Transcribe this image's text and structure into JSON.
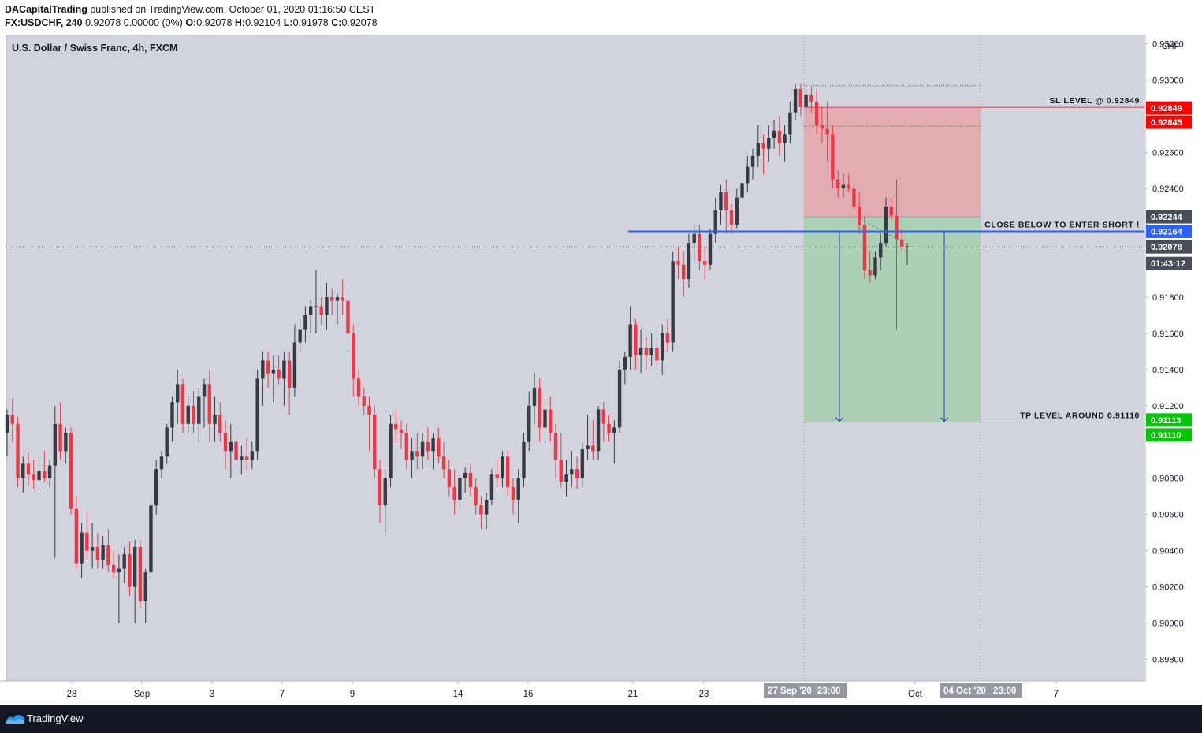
{
  "header": {
    "author": "DACapitalTrading",
    "published_text": "published on TradingView.com, October 01, 2020 01:16:50 CEST",
    "symbol": "FX:USDCHF, 240",
    "change": "0.92078 0.00000 (0%)",
    "o_label": "O:",
    "o_value": "0.92078",
    "h_label": "H:",
    "h_value": "0.92104",
    "l_label": "L:",
    "l_value": "0.91978",
    "c_label": "C:",
    "c_value": "0.92078"
  },
  "footer": {
    "brand": "TradingView"
  },
  "colors": {
    "background": "#d1d4dc",
    "bull": "#363a45",
    "bear": "#f23645",
    "stop_zone": "#e5a4ab",
    "target_zone": "#a5cfae",
    "entry_line": "#2962ff",
    "sl_badge": "#ff0000",
    "tp_badge": "#00c800",
    "price_badge": "#4a4e59"
  },
  "chart_data": {
    "type": "candlestick",
    "title": "U.S. Dollar / Swiss Franc, 4h, FXCM",
    "y_axis_unit": "CHF",
    "ylim": [
      0.8968,
      0.9325
    ],
    "y_ticks": [
      "0.93200",
      "0.93000",
      "0.92600",
      "0.92400",
      "0.91800",
      "0.91600",
      "0.91400",
      "0.91200",
      "0.90800",
      "0.90600",
      "0.90400",
      "0.90200",
      "0.90000",
      "0.89800"
    ],
    "x_tick_labels": [
      {
        "label": "28",
        "date": "2020-08-28"
      },
      {
        "label": "Sep",
        "date": "2020-09-01"
      },
      {
        "label": "3",
        "date": "2020-09-03"
      },
      {
        "label": "7",
        "date": "2020-09-07"
      },
      {
        "label": "9",
        "date": "2020-09-09"
      },
      {
        "label": "14",
        "date": "2020-09-14"
      },
      {
        "label": "16",
        "date": "2020-09-16"
      },
      {
        "label": "21",
        "date": "2020-09-21"
      },
      {
        "label": "23",
        "date": "2020-09-23"
      },
      {
        "label": "Oct",
        "date": "2020-10-01"
      },
      {
        "label": "7",
        "date": "2020-10-07"
      }
    ],
    "x_range_badges": [
      "27 Sep '20",
      "23:00",
      "04 Oct '20",
      "23:00"
    ],
    "price_levels": [
      {
        "label": "0.92849",
        "kind": "sl"
      },
      {
        "label": "0.92845",
        "kind": "sl"
      },
      {
        "label": "0.92244",
        "kind": "price"
      },
      {
        "label": "0.92164",
        "kind": "entry"
      },
      {
        "label": "0.92078",
        "kind": "price"
      },
      {
        "label": "01:43:12",
        "kind": "countdown"
      },
      {
        "label": "0.91113",
        "kind": "tp"
      },
      {
        "label": "0.91110",
        "kind": "tp"
      }
    ],
    "annotations": [
      {
        "text": "SL LEVEL @ 0.92849",
        "price": 0.92849
      },
      {
        "text": "CLOSE BELOW TO ENTER SHORT !",
        "price": 0.92164
      },
      {
        "text": "TP LEVEL AROUND 0.91110",
        "price": 0.9111
      }
    ],
    "position": {
      "side": "short",
      "entry": 0.92244,
      "stop": 0.92849,
      "target": 0.9111,
      "start": "2020-09-27 23:00",
      "end": "2020-10-04 23:00"
    },
    "entry_line": 0.92164,
    "last_price": 0.92078,
    "candles": [
      {
        "o": 0.9105,
        "h": 0.9118,
        "l": 0.9092,
        "c": 0.9115
      },
      {
        "o": 0.9115,
        "h": 0.9124,
        "l": 0.91,
        "c": 0.911
      },
      {
        "o": 0.911,
        "h": 0.9114,
        "l": 0.9075,
        "c": 0.908
      },
      {
        "o": 0.908,
        "h": 0.9092,
        "l": 0.9072,
        "c": 0.9088
      },
      {
        "o": 0.9088,
        "h": 0.9094,
        "l": 0.9076,
        "c": 0.9082
      },
      {
        "o": 0.9082,
        "h": 0.909,
        "l": 0.9074,
        "c": 0.9079
      },
      {
        "o": 0.9079,
        "h": 0.9088,
        "l": 0.9073,
        "c": 0.9084
      },
      {
        "o": 0.9084,
        "h": 0.9095,
        "l": 0.9078,
        "c": 0.908
      },
      {
        "o": 0.908,
        "h": 0.909,
        "l": 0.9075,
        "c": 0.9087
      },
      {
        "o": 0.9087,
        "h": 0.912,
        "l": 0.9036,
        "c": 0.911
      },
      {
        "o": 0.911,
        "h": 0.9122,
        "l": 0.909,
        "c": 0.9095
      },
      {
        "o": 0.9095,
        "h": 0.9108,
        "l": 0.9088,
        "c": 0.9105
      },
      {
        "o": 0.9105,
        "h": 0.9108,
        "l": 0.906,
        "c": 0.9063
      },
      {
        "o": 0.9063,
        "h": 0.907,
        "l": 0.903,
        "c": 0.9033
      },
      {
        "o": 0.9033,
        "h": 0.9055,
        "l": 0.9025,
        "c": 0.905
      },
      {
        "o": 0.905,
        "h": 0.9062,
        "l": 0.9035,
        "c": 0.904
      },
      {
        "o": 0.904,
        "h": 0.9055,
        "l": 0.903,
        "c": 0.9042
      },
      {
        "o": 0.9042,
        "h": 0.905,
        "l": 0.903,
        "c": 0.9035
      },
      {
        "o": 0.9035,
        "h": 0.9048,
        "l": 0.903,
        "c": 0.9043
      },
      {
        "o": 0.9043,
        "h": 0.9052,
        "l": 0.9028,
        "c": 0.9032
      },
      {
        "o": 0.9032,
        "h": 0.904,
        "l": 0.9025,
        "c": 0.9028
      },
      {
        "o": 0.9028,
        "h": 0.9038,
        "l": 0.9,
        "c": 0.903
      },
      {
        "o": 0.903,
        "h": 0.9042,
        "l": 0.9022,
        "c": 0.9038
      },
      {
        "o": 0.9038,
        "h": 0.9045,
        "l": 0.9015,
        "c": 0.902
      },
      {
        "o": 0.902,
        "h": 0.9046,
        "l": 0.9,
        "c": 0.9042
      },
      {
        "o": 0.9042,
        "h": 0.9046,
        "l": 0.9008,
        "c": 0.9012
      },
      {
        "o": 0.9012,
        "h": 0.903,
        "l": 0.9,
        "c": 0.9028
      },
      {
        "o": 0.9028,
        "h": 0.9068,
        "l": 0.9025,
        "c": 0.9065
      },
      {
        "o": 0.9065,
        "h": 0.909,
        "l": 0.906,
        "c": 0.9085
      },
      {
        "o": 0.9085,
        "h": 0.9095,
        "l": 0.908,
        "c": 0.9092
      },
      {
        "o": 0.9092,
        "h": 0.911,
        "l": 0.9088,
        "c": 0.9108
      },
      {
        "o": 0.9108,
        "h": 0.9125,
        "l": 0.91,
        "c": 0.9122
      },
      {
        "o": 0.9122,
        "h": 0.914,
        "l": 0.911,
        "c": 0.9132
      },
      {
        "o": 0.9132,
        "h": 0.9135,
        "l": 0.9105,
        "c": 0.911
      },
      {
        "o": 0.911,
        "h": 0.9125,
        "l": 0.9105,
        "c": 0.912
      },
      {
        "o": 0.912,
        "h": 0.9128,
        "l": 0.9105,
        "c": 0.911
      },
      {
        "o": 0.911,
        "h": 0.913,
        "l": 0.91,
        "c": 0.9125
      },
      {
        "o": 0.9125,
        "h": 0.9135,
        "l": 0.9108,
        "c": 0.9132
      },
      {
        "o": 0.9132,
        "h": 0.914,
        "l": 0.91,
        "c": 0.911
      },
      {
        "o": 0.911,
        "h": 0.9125,
        "l": 0.91,
        "c": 0.9115
      },
      {
        "o": 0.9115,
        "h": 0.9122,
        "l": 0.91,
        "c": 0.9105
      },
      {
        "o": 0.9105,
        "h": 0.9112,
        "l": 0.9085,
        "c": 0.9095
      },
      {
        "o": 0.9095,
        "h": 0.911,
        "l": 0.908,
        "c": 0.91
      },
      {
        "o": 0.91,
        "h": 0.9105,
        "l": 0.9085,
        "c": 0.909
      },
      {
        "o": 0.909,
        "h": 0.9098,
        "l": 0.9082,
        "c": 0.9092
      },
      {
        "o": 0.9092,
        "h": 0.9102,
        "l": 0.9085,
        "c": 0.909
      },
      {
        "o": 0.909,
        "h": 0.91,
        "l": 0.9085,
        "c": 0.9095
      },
      {
        "o": 0.9095,
        "h": 0.914,
        "l": 0.909,
        "c": 0.9135
      },
      {
        "o": 0.9135,
        "h": 0.915,
        "l": 0.912,
        "c": 0.9145
      },
      {
        "o": 0.9145,
        "h": 0.915,
        "l": 0.913,
        "c": 0.9138
      },
      {
        "o": 0.9138,
        "h": 0.9148,
        "l": 0.9122,
        "c": 0.914
      },
      {
        "o": 0.914,
        "h": 0.9148,
        "l": 0.9132,
        "c": 0.9135
      },
      {
        "o": 0.9135,
        "h": 0.915,
        "l": 0.912,
        "c": 0.9145
      },
      {
        "o": 0.9145,
        "h": 0.915,
        "l": 0.9115,
        "c": 0.913
      },
      {
        "o": 0.913,
        "h": 0.9165,
        "l": 0.9125,
        "c": 0.9155
      },
      {
        "o": 0.9155,
        "h": 0.9168,
        "l": 0.915,
        "c": 0.9162
      },
      {
        "o": 0.9162,
        "h": 0.9175,
        "l": 0.9155,
        "c": 0.917
      },
      {
        "o": 0.917,
        "h": 0.9178,
        "l": 0.916,
        "c": 0.9175
      },
      {
        "o": 0.9175,
        "h": 0.9195,
        "l": 0.916,
        "c": 0.9175
      },
      {
        "o": 0.9175,
        "h": 0.918,
        "l": 0.9165,
        "c": 0.917
      },
      {
        "o": 0.917,
        "h": 0.9188,
        "l": 0.9162,
        "c": 0.918
      },
      {
        "o": 0.918,
        "h": 0.9185,
        "l": 0.917,
        "c": 0.9178
      },
      {
        "o": 0.9178,
        "h": 0.9182,
        "l": 0.9165,
        "c": 0.918
      },
      {
        "o": 0.918,
        "h": 0.919,
        "l": 0.917,
        "c": 0.9178
      },
      {
        "o": 0.9178,
        "h": 0.9185,
        "l": 0.915,
        "c": 0.916
      },
      {
        "o": 0.916,
        "h": 0.9165,
        "l": 0.9125,
        "c": 0.9135
      },
      {
        "o": 0.9135,
        "h": 0.914,
        "l": 0.912,
        "c": 0.9125
      },
      {
        "o": 0.9125,
        "h": 0.913,
        "l": 0.9115,
        "c": 0.912
      },
      {
        "o": 0.912,
        "h": 0.9125,
        "l": 0.9095,
        "c": 0.9115
      },
      {
        "o": 0.9115,
        "h": 0.912,
        "l": 0.908,
        "c": 0.9085
      },
      {
        "o": 0.9085,
        "h": 0.909,
        "l": 0.9055,
        "c": 0.9065
      },
      {
        "o": 0.9065,
        "h": 0.9085,
        "l": 0.905,
        "c": 0.908
      },
      {
        "o": 0.908,
        "h": 0.9115,
        "l": 0.9075,
        "c": 0.911
      },
      {
        "o": 0.911,
        "h": 0.9118,
        "l": 0.91,
        "c": 0.9107
      },
      {
        "o": 0.9107,
        "h": 0.9112,
        "l": 0.9096,
        "c": 0.9105
      },
      {
        "o": 0.9105,
        "h": 0.911,
        "l": 0.9085,
        "c": 0.909
      },
      {
        "o": 0.909,
        "h": 0.9102,
        "l": 0.908,
        "c": 0.9095
      },
      {
        "o": 0.9095,
        "h": 0.9105,
        "l": 0.9085,
        "c": 0.9092
      },
      {
        "o": 0.9092,
        "h": 0.9105,
        "l": 0.9085,
        "c": 0.91
      },
      {
        "o": 0.91,
        "h": 0.9108,
        "l": 0.909,
        "c": 0.9095
      },
      {
        "o": 0.9095,
        "h": 0.9105,
        "l": 0.9085,
        "c": 0.9102
      },
      {
        "o": 0.9102,
        "h": 0.9108,
        "l": 0.9088,
        "c": 0.9092
      },
      {
        "o": 0.9092,
        "h": 0.91,
        "l": 0.908,
        "c": 0.9085
      },
      {
        "o": 0.9085,
        "h": 0.909,
        "l": 0.907,
        "c": 0.9075
      },
      {
        "o": 0.9075,
        "h": 0.9085,
        "l": 0.906,
        "c": 0.9068
      },
      {
        "o": 0.9068,
        "h": 0.9082,
        "l": 0.9063,
        "c": 0.908
      },
      {
        "o": 0.908,
        "h": 0.9086,
        "l": 0.9072,
        "c": 0.9083
      },
      {
        "o": 0.9083,
        "h": 0.9088,
        "l": 0.907,
        "c": 0.9075
      },
      {
        "o": 0.9075,
        "h": 0.908,
        "l": 0.906,
        "c": 0.9065
      },
      {
        "o": 0.9065,
        "h": 0.907,
        "l": 0.9052,
        "c": 0.906
      },
      {
        "o": 0.906,
        "h": 0.9072,
        "l": 0.9052,
        "c": 0.9068
      },
      {
        "o": 0.9068,
        "h": 0.9085,
        "l": 0.9065,
        "c": 0.9082
      },
      {
        "o": 0.9082,
        "h": 0.909,
        "l": 0.9075,
        "c": 0.908
      },
      {
        "o": 0.908,
        "h": 0.9095,
        "l": 0.9075,
        "c": 0.9092
      },
      {
        "o": 0.9092,
        "h": 0.9095,
        "l": 0.907,
        "c": 0.9075
      },
      {
        "o": 0.9075,
        "h": 0.908,
        "l": 0.906,
        "c": 0.9068
      },
      {
        "o": 0.9068,
        "h": 0.9085,
        "l": 0.9055,
        "c": 0.908
      },
      {
        "o": 0.908,
        "h": 0.9105,
        "l": 0.9075,
        "c": 0.91
      },
      {
        "o": 0.91,
        "h": 0.9128,
        "l": 0.9095,
        "c": 0.912
      },
      {
        "o": 0.912,
        "h": 0.9138,
        "l": 0.911,
        "c": 0.913
      },
      {
        "o": 0.913,
        "h": 0.9135,
        "l": 0.91,
        "c": 0.9108
      },
      {
        "o": 0.9108,
        "h": 0.9122,
        "l": 0.91,
        "c": 0.9118
      },
      {
        "o": 0.9118,
        "h": 0.9125,
        "l": 0.91,
        "c": 0.9105
      },
      {
        "o": 0.9105,
        "h": 0.911,
        "l": 0.908,
        "c": 0.909
      },
      {
        "o": 0.909,
        "h": 0.9105,
        "l": 0.9075,
        "c": 0.9078
      },
      {
        "o": 0.9078,
        "h": 0.909,
        "l": 0.907,
        "c": 0.9082
      },
      {
        "o": 0.9082,
        "h": 0.9095,
        "l": 0.9075,
        "c": 0.9085
      },
      {
        "o": 0.9085,
        "h": 0.9092,
        "l": 0.9074,
        "c": 0.908
      },
      {
        "o": 0.908,
        "h": 0.91,
        "l": 0.9075,
        "c": 0.9096
      },
      {
        "o": 0.9096,
        "h": 0.9115,
        "l": 0.909,
        "c": 0.9098
      },
      {
        "o": 0.9098,
        "h": 0.9112,
        "l": 0.909,
        "c": 0.9095
      },
      {
        "o": 0.9095,
        "h": 0.912,
        "l": 0.909,
        "c": 0.9118
      },
      {
        "o": 0.9118,
        "h": 0.9122,
        "l": 0.91,
        "c": 0.911
      },
      {
        "o": 0.911,
        "h": 0.9115,
        "l": 0.91,
        "c": 0.9105
      },
      {
        "o": 0.9105,
        "h": 0.9112,
        "l": 0.9088,
        "c": 0.9108
      },
      {
        "o": 0.9108,
        "h": 0.9145,
        "l": 0.9105,
        "c": 0.914
      },
      {
        "o": 0.914,
        "h": 0.915,
        "l": 0.9132,
        "c": 0.9147
      },
      {
        "o": 0.9147,
        "h": 0.9175,
        "l": 0.914,
        "c": 0.9165
      },
      {
        "o": 0.9165,
        "h": 0.9168,
        "l": 0.914,
        "c": 0.9148
      },
      {
        "o": 0.9148,
        "h": 0.9162,
        "l": 0.9138,
        "c": 0.9152
      },
      {
        "o": 0.9152,
        "h": 0.9158,
        "l": 0.914,
        "c": 0.9148
      },
      {
        "o": 0.9148,
        "h": 0.916,
        "l": 0.9142,
        "c": 0.9152
      },
      {
        "o": 0.9152,
        "h": 0.9158,
        "l": 0.914,
        "c": 0.9145
      },
      {
        "o": 0.9145,
        "h": 0.9165,
        "l": 0.9137,
        "c": 0.916
      },
      {
        "o": 0.916,
        "h": 0.9168,
        "l": 0.915,
        "c": 0.9155
      },
      {
        "o": 0.9155,
        "h": 0.9205,
        "l": 0.915,
        "c": 0.92
      },
      {
        "o": 0.92,
        "h": 0.9208,
        "l": 0.919,
        "c": 0.9198
      },
      {
        "o": 0.9198,
        "h": 0.9205,
        "l": 0.918,
        "c": 0.919
      },
      {
        "o": 0.919,
        "h": 0.9215,
        "l": 0.9185,
        "c": 0.921
      },
      {
        "o": 0.921,
        "h": 0.922,
        "l": 0.92,
        "c": 0.9215
      },
      {
        "o": 0.9215,
        "h": 0.922,
        "l": 0.9195,
        "c": 0.92
      },
      {
        "o": 0.92,
        "h": 0.9208,
        "l": 0.919,
        "c": 0.9198
      },
      {
        "o": 0.9198,
        "h": 0.9218,
        "l": 0.9195,
        "c": 0.9215
      },
      {
        "o": 0.9215,
        "h": 0.9235,
        "l": 0.921,
        "c": 0.9228
      },
      {
        "o": 0.9228,
        "h": 0.9242,
        "l": 0.922,
        "c": 0.9238
      },
      {
        "o": 0.9238,
        "h": 0.9245,
        "l": 0.9215,
        "c": 0.9228
      },
      {
        "o": 0.9228,
        "h": 0.9232,
        "l": 0.9215,
        "c": 0.922
      },
      {
        "o": 0.922,
        "h": 0.924,
        "l": 0.9218,
        "c": 0.9235
      },
      {
        "o": 0.9235,
        "h": 0.925,
        "l": 0.923,
        "c": 0.9243
      },
      {
        "o": 0.9243,
        "h": 0.9258,
        "l": 0.9238,
        "c": 0.9252
      },
      {
        "o": 0.9252,
        "h": 0.9262,
        "l": 0.9245,
        "c": 0.9258
      },
      {
        "o": 0.9258,
        "h": 0.9275,
        "l": 0.9252,
        "c": 0.9265
      },
      {
        "o": 0.9265,
        "h": 0.927,
        "l": 0.9248,
        "c": 0.9262
      },
      {
        "o": 0.9262,
        "h": 0.9275,
        "l": 0.9255,
        "c": 0.9268
      },
      {
        "o": 0.9268,
        "h": 0.9278,
        "l": 0.9262,
        "c": 0.9272
      },
      {
        "o": 0.9272,
        "h": 0.928,
        "l": 0.9258,
        "c": 0.9265
      },
      {
        "o": 0.9265,
        "h": 0.9275,
        "l": 0.9255,
        "c": 0.927
      },
      {
        "o": 0.927,
        "h": 0.9288,
        "l": 0.9265,
        "c": 0.9282
      },
      {
        "o": 0.9282,
        "h": 0.9298,
        "l": 0.9278,
        "c": 0.9295
      },
      {
        "o": 0.9295,
        "h": 0.9298,
        "l": 0.928,
        "c": 0.9285
      },
      {
        "o": 0.9285,
        "h": 0.9295,
        "l": 0.9278,
        "c": 0.9292
      },
      {
        "o": 0.9292,
        "h": 0.9296,
        "l": 0.9282,
        "c": 0.9288
      },
      {
        "o": 0.9288,
        "h": 0.9295,
        "l": 0.927,
        "c": 0.9275
      },
      {
        "o": 0.9275,
        "h": 0.9285,
        "l": 0.9265,
        "c": 0.9273
      },
      {
        "o": 0.9273,
        "h": 0.9288,
        "l": 0.9255,
        "c": 0.927
      },
      {
        "o": 0.927,
        "h": 0.9275,
        "l": 0.924,
        "c": 0.9245
      },
      {
        "o": 0.9245,
        "h": 0.925,
        "l": 0.9235,
        "c": 0.924
      },
      {
        "o": 0.924,
        "h": 0.9248,
        "l": 0.9235,
        "c": 0.9242
      },
      {
        "o": 0.9242,
        "h": 0.9248,
        "l": 0.9238,
        "c": 0.924
      },
      {
        "o": 0.924,
        "h": 0.9245,
        "l": 0.9228,
        "c": 0.923
      },
      {
        "o": 0.923,
        "h": 0.9238,
        "l": 0.9215,
        "c": 0.922
      },
      {
        "o": 0.922,
        "h": 0.9225,
        "l": 0.919,
        "c": 0.9195
      },
      {
        "o": 0.9195,
        "h": 0.9205,
        "l": 0.9188,
        "c": 0.9192
      },
      {
        "o": 0.9192,
        "h": 0.9205,
        "l": 0.919,
        "c": 0.9202
      },
      {
        "o": 0.9202,
        "h": 0.9215,
        "l": 0.9195,
        "c": 0.921
      },
      {
        "o": 0.921,
        "h": 0.9235,
        "l": 0.9208,
        "c": 0.923
      },
      {
        "o": 0.923,
        "h": 0.9235,
        "l": 0.9222,
        "c": 0.9225
      },
      {
        "o": 0.9225,
        "h": 0.9245,
        "l": 0.9162,
        "c": 0.9212
      },
      {
        "o": 0.9212,
        "h": 0.9218,
        "l": 0.9205,
        "c": 0.9208
      },
      {
        "o": 0.9208,
        "h": 0.921,
        "l": 0.9198,
        "c": 0.9208
      }
    ]
  }
}
